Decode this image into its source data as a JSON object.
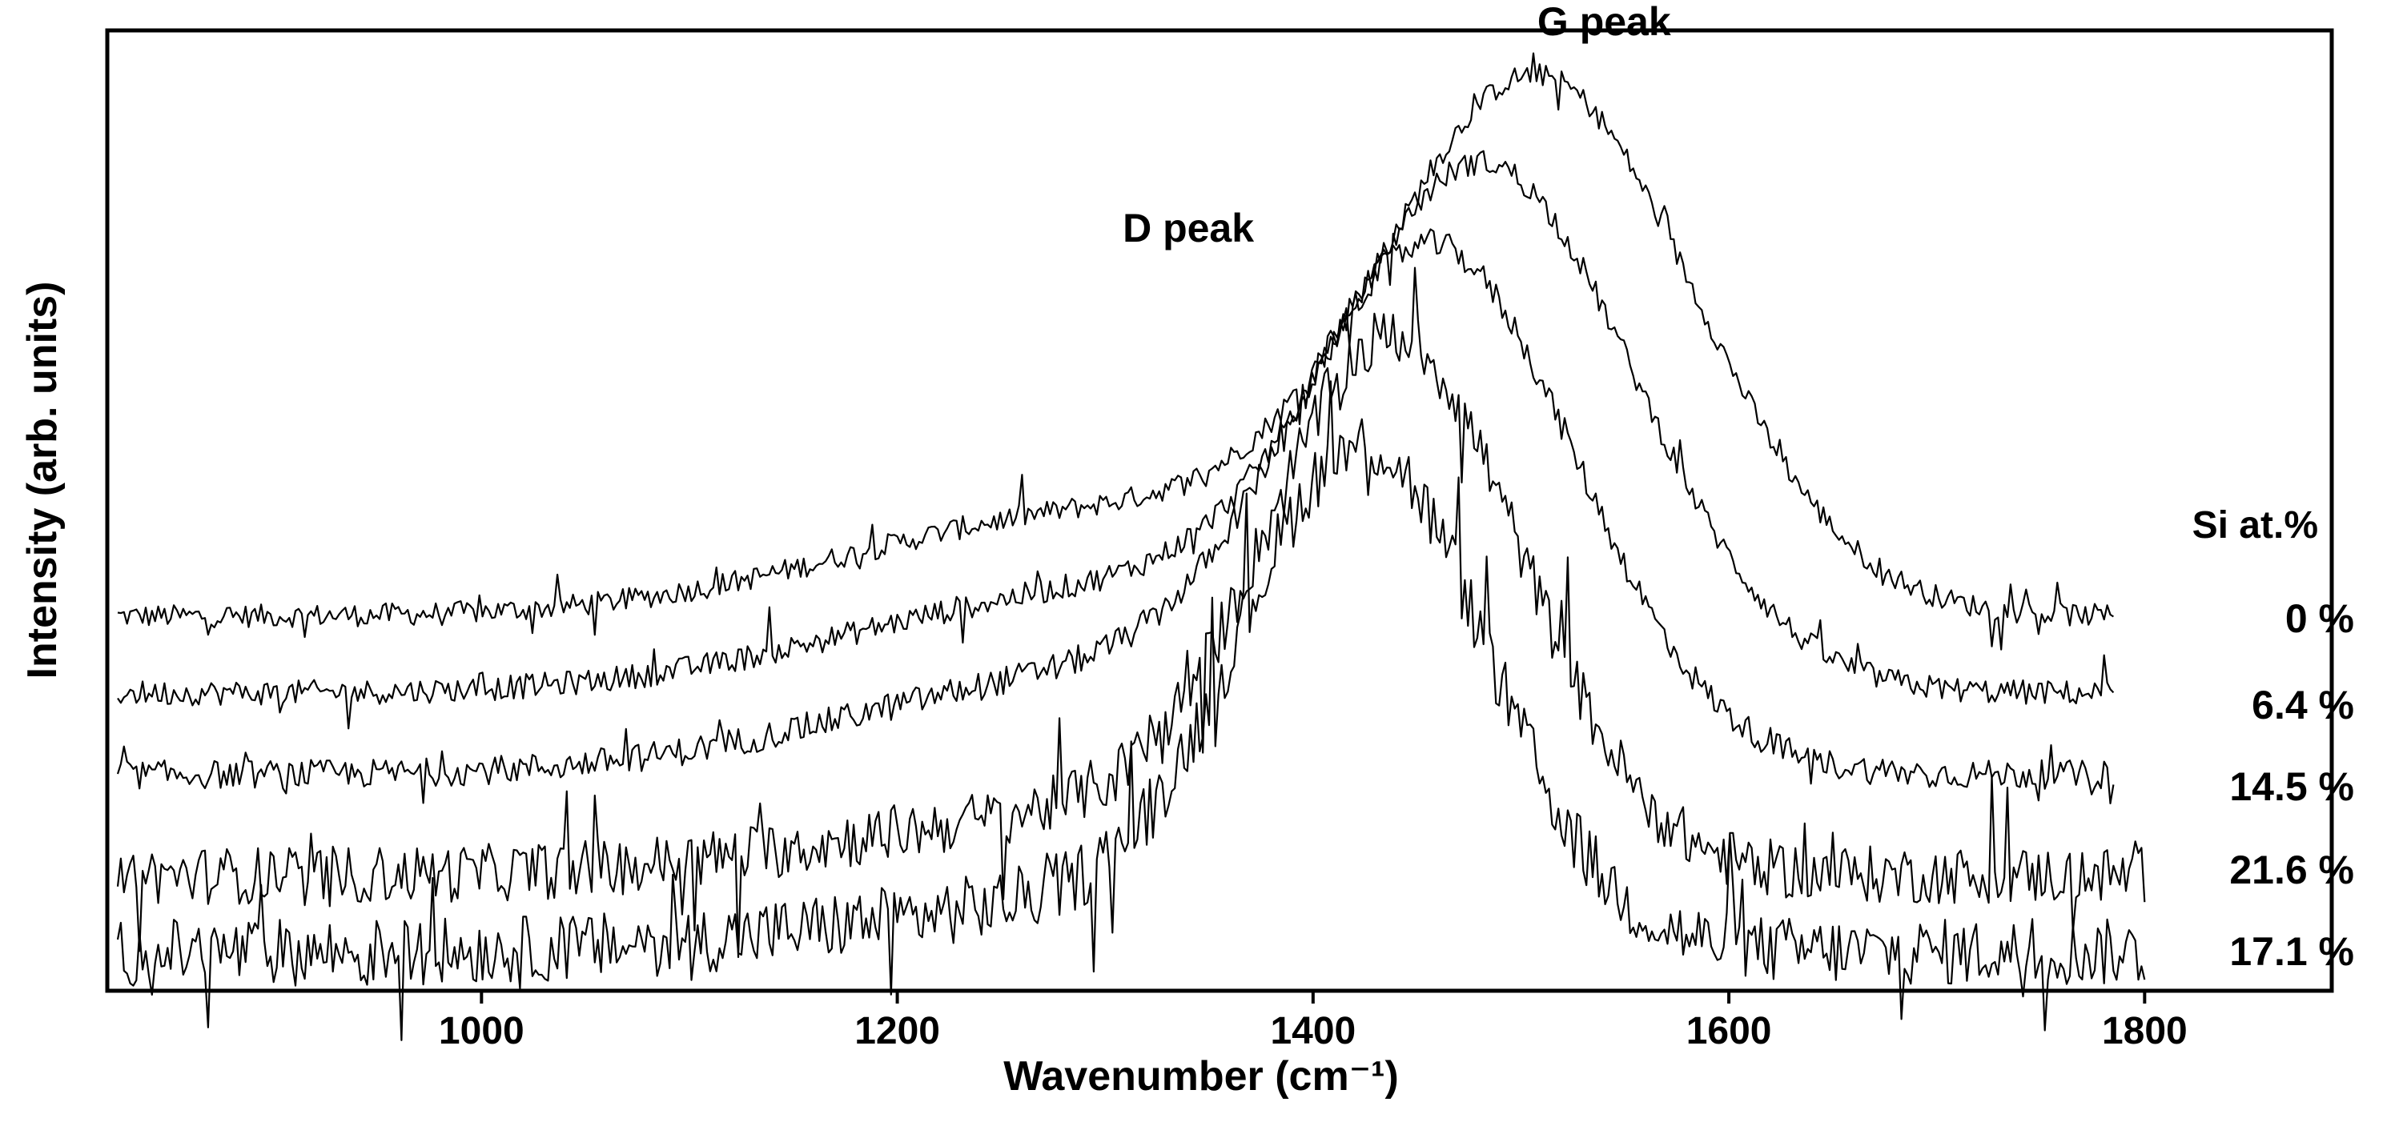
{
  "chart_data": {
    "type": "line",
    "title": "",
    "xlabel": "Wavenumber (cm⁻¹)",
    "ylabel": "Intensity (arb. units)",
    "xlim": [
      820,
      1890
    ],
    "ylim": [
      0,
      1
    ],
    "x_ticks": [
      1000,
      1200,
      1400,
      1600,
      1800
    ],
    "y_ticks": [],
    "grid": false,
    "legend_title": "Si at.%",
    "annotations": [
      {
        "text": "G peak",
        "x": 1540,
        "y": 0.995
      },
      {
        "text": "D peak",
        "x": 1340,
        "y": 0.78
      }
    ],
    "series": [
      {
        "name": "0 %",
        "x_range": [
          825,
          1785
        ],
        "baseline": 0.39,
        "peak_x": 1510,
        "peak_height": 0.54,
        "peak_width": 105,
        "d_shoulder": 0.2,
        "noise": 0.012
      },
      {
        "name": "6.4 %",
        "x_range": [
          825,
          1785
        ],
        "baseline": 0.31,
        "peak_x": 1485,
        "peak_height": 0.52,
        "peak_width": 100,
        "d_shoulder": 0.2,
        "noise": 0.013
      },
      {
        "name": "14.5 %",
        "x_range": [
          825,
          1785
        ],
        "baseline": 0.225,
        "peak_x": 1460,
        "peak_height": 0.51,
        "peak_width": 95,
        "d_shoulder": 0.2,
        "noise": 0.015
      },
      {
        "name": "21.6 %",
        "x_range": [
          825,
          1800
        ],
        "baseline": 0.12,
        "peak_x": 1440,
        "peak_height": 0.53,
        "peak_width": 85,
        "d_shoulder": 0.12,
        "noise": 0.03
      },
      {
        "name": "17.1 %",
        "x_range": [
          825,
          1800
        ],
        "baseline": 0.04,
        "peak_x": 1425,
        "peak_height": 0.5,
        "peak_width": 82,
        "d_shoulder": 0.1,
        "noise": 0.035
      }
    ]
  }
}
